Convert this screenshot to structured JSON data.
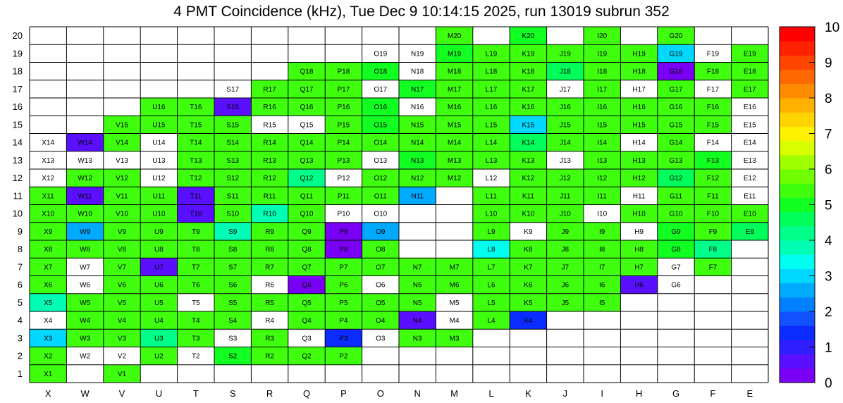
{
  "title": "4 PMT Coincidence (kHz), Tue Dec  9 10:14:15 2025, run 13019 subrun 352",
  "chart_data": {
    "type": "heatmap",
    "title": "4 PMT Coincidence (kHz), Tue Dec  9 10:14:15 2025, run 13019 subrun 352",
    "columns": [
      "X",
      "W",
      "V",
      "U",
      "T",
      "S",
      "R",
      "Q",
      "P",
      "O",
      "N",
      "M",
      "L",
      "K",
      "J",
      "I",
      "H",
      "G",
      "F",
      "E"
    ],
    "rows": [
      20,
      19,
      18,
      17,
      16,
      15,
      14,
      13,
      12,
      11,
      10,
      9,
      8,
      7,
      6,
      5,
      4,
      3,
      2,
      1
    ],
    "zlim": [
      0,
      10
    ],
    "colorbar_ticks": [
      "0",
      "1",
      "2",
      "3",
      "4",
      "5",
      "6",
      "7",
      "8",
      "9",
      "10"
    ],
    "colorbar_colors": [
      "#7a00f5",
      "#5a10ff",
      "#2f1fff",
      "#0a2cff",
      "#1252ff",
      "#0080ff",
      "#00aaff",
      "#00d8ff",
      "#00ffee",
      "#00ffb4",
      "#00ff88",
      "#00ff5a",
      "#12ff22",
      "#3fff0f",
      "#70ff00",
      "#a0ff00",
      "#d8ff00",
      "#fff200",
      "#ffd400",
      "#ffb000",
      "#ff8c00",
      "#ff6a00",
      "#ff4500",
      "#ff2200",
      "#ff0000"
    ],
    "grid_values": [
      [
        null,
        null,
        null,
        null,
        null,
        null,
        null,
        null,
        null,
        null,
        null,
        5.2,
        null,
        4.8,
        null,
        5.3,
        null,
        5.4,
        null,
        null
      ],
      [
        null,
        null,
        null,
        null,
        null,
        null,
        null,
        null,
        null,
        -1,
        -1,
        5.1,
        5.2,
        5.3,
        5.3,
        5.4,
        5.4,
        3.0,
        -1,
        5.4
      ],
      [
        null,
        null,
        null,
        null,
        null,
        null,
        null,
        5.3,
        5.3,
        5.0,
        -1,
        5.3,
        5.3,
        5.3,
        4.5,
        5.3,
        5.3,
        0.3,
        5.3,
        5.3
      ],
      [
        null,
        null,
        null,
        null,
        null,
        -1,
        5.3,
        5.3,
        5.3,
        -1,
        5.0,
        5.3,
        5.3,
        5.3,
        -1,
        5.3,
        -1,
        5.3,
        -1,
        5.3
      ],
      [
        null,
        null,
        null,
        5.3,
        5.3,
        0.4,
        5.3,
        5.3,
        5.3,
        5.0,
        -1,
        5.3,
        5.3,
        5.3,
        5.3,
        5.3,
        5.3,
        5.3,
        5.3,
        -1
      ],
      [
        null,
        null,
        5.3,
        5.3,
        5.3,
        5.3,
        -1,
        -1,
        5.2,
        5.0,
        5.2,
        5.3,
        5.3,
        3.0,
        5.3,
        5.3,
        5.3,
        5.3,
        5.3,
        -1
      ],
      [
        -1,
        0.4,
        5.3,
        -1,
        5.3,
        5.3,
        5.3,
        5.3,
        5.3,
        5.3,
        5.3,
        5.3,
        5.3,
        4.5,
        5.3,
        5.3,
        -1,
        5.3,
        -1,
        -1
      ],
      [
        -1,
        -1,
        -1,
        -1,
        5.3,
        5.3,
        5.3,
        5.3,
        5.3,
        -1,
        5.0,
        5.3,
        5.3,
        5.3,
        -1,
        5.3,
        5.3,
        5.3,
        5.0,
        -1
      ],
      [
        -1,
        5.3,
        5.3,
        -1,
        5.3,
        5.3,
        5.3,
        4.3,
        -1,
        5.3,
        5.3,
        5.3,
        -1,
        5.3,
        5.3,
        5.3,
        5.3,
        4.5,
        5.3,
        -1
      ],
      [
        5.3,
        0.4,
        5.3,
        5.3,
        0.4,
        5.3,
        5.3,
        5.3,
        5.3,
        5.3,
        2.7,
        null,
        5.3,
        5.3,
        5.3,
        5.3,
        -1,
        5.3,
        5.3,
        -1
      ],
      [
        5.3,
        5.3,
        5.3,
        5.3,
        0.4,
        5.3,
        3.7,
        5.3,
        -1,
        -1,
        null,
        null,
        5.3,
        5.3,
        5.3,
        -1,
        5.3,
        5.3,
        5.3,
        5.3
      ],
      [
        5.3,
        2.8,
        5.3,
        5.3,
        5.3,
        3.8,
        5.3,
        5.3,
        0.3,
        2.8,
        null,
        null,
        5.3,
        -1,
        5.3,
        5.3,
        -1,
        5.0,
        5.3,
        4.5
      ],
      [
        5.3,
        5.3,
        5.3,
        5.3,
        5.3,
        5.3,
        5.3,
        5.3,
        0.3,
        5.3,
        null,
        null,
        3.5,
        5.3,
        5.3,
        5.3,
        5.3,
        5.0,
        4.0,
        null
      ],
      [
        5.3,
        -1,
        5.3,
        0.4,
        5.3,
        5.3,
        5.3,
        5.3,
        5.3,
        5.3,
        5.3,
        5.3,
        5.3,
        5.3,
        5.3,
        5.3,
        5.3,
        -1,
        5.3,
        null
      ],
      [
        5.3,
        -1,
        5.3,
        5.3,
        5.3,
        5.3,
        -1,
        0.3,
        5.3,
        -1,
        5.3,
        5.3,
        5.3,
        5.3,
        5.3,
        5.3,
        0.4,
        -1,
        null,
        null
      ],
      [
        3.7,
        5.3,
        5.3,
        5.3,
        -1,
        5.3,
        5.3,
        5.3,
        5.3,
        5.3,
        5.3,
        -1,
        5.3,
        5.3,
        5.3,
        5.3,
        null,
        null,
        null,
        null
      ],
      [
        -1,
        5.3,
        5.3,
        5.3,
        5.3,
        5.3,
        -1,
        5.3,
        5.3,
        5.3,
        0.4,
        -1,
        5.3,
        1.3,
        null,
        null,
        null,
        null,
        null,
        null
      ],
      [
        3.0,
        5.3,
        5.3,
        4.3,
        5.3,
        -1,
        5.3,
        -1,
        1.3,
        -1,
        5.3,
        5.3,
        null,
        null,
        null,
        null,
        null,
        null,
        null,
        null
      ],
      [
        5.3,
        -1,
        -1,
        5.3,
        -1,
        5.0,
        5.3,
        5.3,
        5.3,
        null,
        null,
        null,
        null,
        null,
        null,
        null,
        null,
        null,
        null,
        null
      ],
      [
        5.3,
        null,
        5.3,
        null,
        null,
        null,
        null,
        null,
        null,
        null,
        null,
        null,
        null,
        null,
        null,
        null,
        null,
        null,
        null,
        null
      ]
    ],
    "value_note_codes": {
      "null": "no cell",
      "-1": "empty white cell with label"
    }
  }
}
